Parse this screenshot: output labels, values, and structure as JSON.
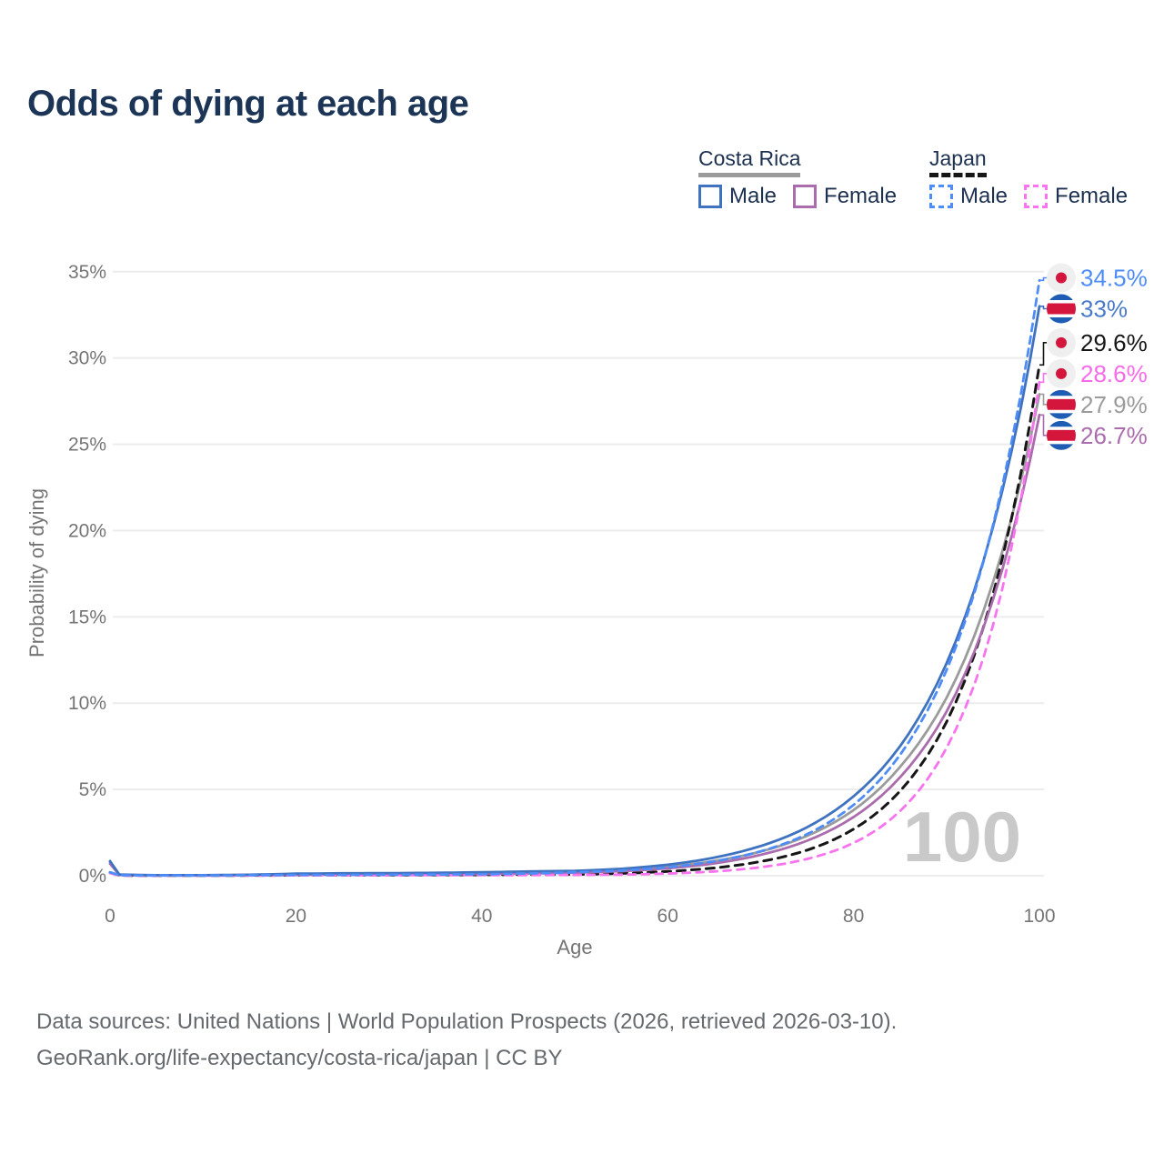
{
  "title": "Odds of dying at each age",
  "legend": {
    "groups": [
      {
        "name": "Costa Rica",
        "line_style": "solid",
        "underline_color": "#9b9b9b",
        "items": [
          {
            "label": "Male",
            "color": "#3f72bf",
            "style": "solid"
          },
          {
            "label": "Female",
            "color": "#ab6cae",
            "style": "solid"
          }
        ]
      },
      {
        "name": "Japan",
        "line_style": "dashed",
        "underline_color": "#161616",
        "items": [
          {
            "label": "Male",
            "color": "#4e8cf7",
            "style": "dashed"
          },
          {
            "label": "Female",
            "color": "#f873ee",
            "style": "dashed"
          }
        ]
      }
    ]
  },
  "chart_data": {
    "type": "line",
    "title": "Odds of dying at each age",
    "xlabel": "Age",
    "ylabel": "Probability of dying",
    "xlim": [
      0,
      100
    ],
    "ylim": [
      0,
      35
    ],
    "xticks": [
      0,
      20,
      40,
      60,
      80,
      100
    ],
    "yticks": [
      0,
      5,
      10,
      15,
      20,
      25,
      30,
      35
    ],
    "ytick_suffix": "%",
    "grid": "horizontal",
    "legend_position": "top-right",
    "age_indicator": "100",
    "x": [
      0,
      1,
      5,
      10,
      15,
      20,
      25,
      30,
      35,
      40,
      45,
      50,
      55,
      60,
      65,
      70,
      75,
      80,
      85,
      90,
      95,
      100
    ],
    "series": [
      {
        "id": "costa-rica-all",
        "name": "Costa Rica",
        "group": "Costa Rica",
        "sex": "All",
        "color": "#9b9b9b",
        "dash": "",
        "width": 2.8,
        "flag": "cr",
        "end_label": "27.9%",
        "label_color": "#9b9b9b",
        "values": [
          0.8,
          0.06,
          0.025,
          0.025,
          0.045,
          0.08,
          0.1,
          0.11,
          0.12,
          0.15,
          0.19,
          0.24,
          0.33,
          0.52,
          0.85,
          1.4,
          2.31,
          3.8,
          6.3,
          10.3,
          17.0,
          27.9
        ]
      },
      {
        "id": "japan-all",
        "name": "Japan",
        "group": "Japan",
        "sex": "All",
        "color": "#161616",
        "dash": "9 7",
        "width": 3,
        "flag": "jp",
        "end_label": "29.6%",
        "label_color": "#161616",
        "values": [
          0.18,
          0.02,
          0.01,
          0.01,
          0.02,
          0.03,
          0.035,
          0.04,
          0.05,
          0.055,
          0.065,
          0.075,
          0.135,
          0.25,
          0.45,
          0.82,
          1.48,
          2.7,
          4.9,
          8.9,
          16.3,
          29.6
        ]
      },
      {
        "id": "costa-rica-female",
        "name": "Costa Rica Female",
        "group": "Costa Rica",
        "sex": "Female",
        "color": "#ab6cae",
        "dash": "",
        "width": 2.8,
        "flag": "cr",
        "end_label": "26.7%",
        "label_color": "#ab6cae",
        "values": [
          0.7,
          0.05,
          0.02,
          0.02,
          0.03,
          0.05,
          0.06,
          0.07,
          0.08,
          0.1,
          0.13,
          0.18,
          0.26,
          0.43,
          0.71,
          1.21,
          2.03,
          3.4,
          5.7,
          9.5,
          16.0,
          26.7
        ]
      },
      {
        "id": "japan-female",
        "name": "Japan Female",
        "group": "Japan",
        "sex": "Female",
        "color": "#f873ee",
        "dash": "8 7",
        "width": 2.8,
        "flag": "jp",
        "end_label": "28.6%",
        "label_color": "#f76ae9",
        "values": [
          0.15,
          0.015,
          0.008,
          0.008,
          0.015,
          0.02,
          0.025,
          0.03,
          0.03,
          0.035,
          0.04,
          0.05,
          0.064,
          0.126,
          0.25,
          0.49,
          0.97,
          1.9,
          3.74,
          7.4,
          14.5,
          28.6
        ]
      },
      {
        "id": "costa-rica-male",
        "name": "Costa Rica Male",
        "group": "Costa Rica",
        "sex": "Male",
        "color": "#3f72bf",
        "dash": "",
        "width": 2.8,
        "flag": "cr",
        "end_label": "33%",
        "label_color": "#4a7ac9",
        "values": [
          0.85,
          0.07,
          0.03,
          0.03,
          0.06,
          0.12,
          0.14,
          0.15,
          0.17,
          0.2,
          0.25,
          0.28,
          0.4,
          0.64,
          1.05,
          1.72,
          2.81,
          4.6,
          7.5,
          12.3,
          20.2,
          33
        ]
      },
      {
        "id": "japan-male",
        "name": "Japan Male",
        "group": "Japan",
        "sex": "Male",
        "color": "#4e8cf7",
        "dash": "8 6",
        "width": 2.8,
        "flag": "jp",
        "end_label": "34.5%",
        "label_color": "#4e8cf7",
        "values": [
          0.2,
          0.03,
          0.015,
          0.015,
          0.03,
          0.045,
          0.05,
          0.06,
          0.07,
          0.09,
          0.13,
          0.2,
          0.3,
          0.49,
          0.83,
          1.41,
          2.41,
          4.1,
          7.0,
          11.9,
          20.3,
          34.5
        ]
      }
    ],
    "flag_colors": {
      "costa_rica_blue": "#1f5cb3",
      "costa_rica_red": "#d5163c",
      "japan_bg": "#efefef",
      "japan_red": "#d5163c"
    }
  },
  "footer": {
    "line1": "Data sources: United Nations | World Population Prospects (2026, retrieved 2026-03-10).",
    "line2": "GeoRank.org/life-expectancy/costa-rica/japan | CC BY"
  }
}
